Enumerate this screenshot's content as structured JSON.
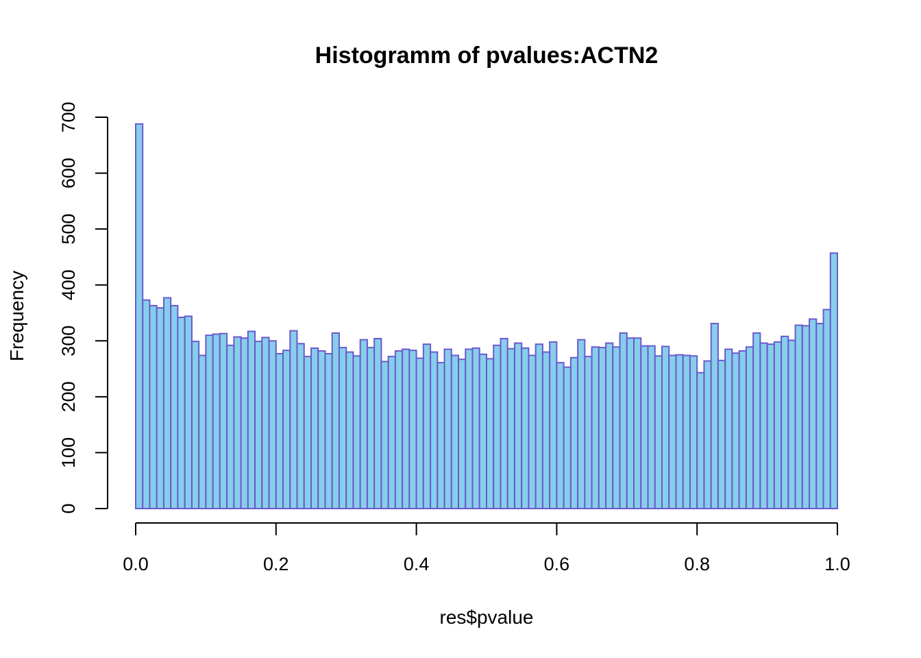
{
  "chart_data": {
    "type": "bar",
    "title": "Histogramm of pvalues:ACTN2",
    "xlabel": "res$pvalue",
    "ylabel": "Frequency",
    "bin_width": 0.01,
    "x_range": [
      0,
      1
    ],
    "xlim": [
      0,
      1
    ],
    "ylim": [
      0,
      700
    ],
    "x_ticks": [
      "0.0",
      "0.2",
      "0.4",
      "0.6",
      "0.8",
      "1.0"
    ],
    "y_ticks": [
      "0",
      "100",
      "200",
      "300",
      "400",
      "500",
      "600",
      "700"
    ],
    "bar_fill": "#87ceeb",
    "bar_edge": "#6a5acd",
    "grid": false,
    "values": [
      688,
      373,
      363,
      359,
      377,
      363,
      342,
      344,
      299,
      274,
      310,
      312,
      313,
      292,
      307,
      305,
      317,
      299,
      306,
      300,
      277,
      283,
      318,
      295,
      272,
      287,
      282,
      277,
      314,
      288,
      280,
      273,
      302,
      288,
      304,
      263,
      272,
      282,
      285,
      283,
      269,
      294,
      280,
      261,
      285,
      274,
      267,
      285,
      287,
      276,
      268,
      292,
      304,
      286,
      296,
      287,
      274,
      294,
      280,
      298,
      261,
      253,
      270,
      302,
      272,
      289,
      288,
      296,
      289,
      314,
      305,
      305,
      291,
      291,
      273,
      290,
      274,
      275,
      274,
      273,
      243,
      264,
      331,
      265,
      285,
      278,
      282,
      289,
      314,
      296,
      294,
      298,
      308,
      301,
      328,
      327,
      339,
      331,
      356,
      457
    ]
  }
}
